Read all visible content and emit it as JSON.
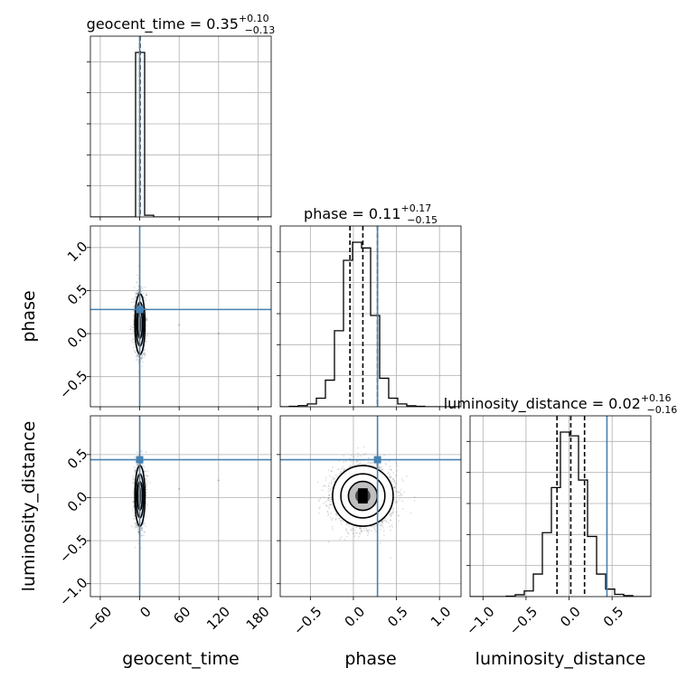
{
  "chart_data": {
    "type": "corner",
    "parameters": [
      "geocent_time",
      "phase",
      "luminosity_distance"
    ],
    "truth_color": "#4682b4",
    "titles": [
      {
        "param": "geocent_time",
        "text": "geocent_time = 0.35",
        "sup": "+0.10",
        "sub": "−0.13"
      },
      {
        "param": "phase",
        "text": "phase = 0.11",
        "sup": "+0.17",
        "sub": "−0.15"
      },
      {
        "param": "luminosity_distance",
        "text": "luminosity_distance = 0.02",
        "sup": "+0.16",
        "sub": "−0.16"
      }
    ],
    "axis_labels": {
      "x": [
        "geocent_time",
        "phase",
        "luminosity_distance"
      ],
      "y": [
        "phase",
        "luminosity_distance"
      ]
    },
    "ranges": {
      "geocent_time": [
        -75,
        200
      ],
      "phase": [
        -0.85,
        1.25
      ],
      "luminosity_distance": [
        -1.15,
        0.95
      ]
    },
    "ticks": {
      "geocent_time": {
        "values": [
          -60,
          0,
          60,
          120,
          180
        ],
        "labels": [
          "−60",
          "0",
          "60",
          "120",
          "180"
        ]
      },
      "phase": {
        "values": [
          -0.5,
          0.0,
          0.5,
          1.0
        ],
        "labels": [
          "−0.5",
          "0.0",
          "0.5",
          "1.0"
        ]
      },
      "luminosity_distance": {
        "values": [
          -1.0,
          -0.5,
          0.0,
          0.5
        ],
        "labels": [
          "−1.0",
          "−0.5",
          "0.0",
          "0.5"
        ]
      }
    },
    "truths": {
      "geocent_time": 0.0,
      "phase": 0.28,
      "luminosity_distance": 0.44
    },
    "quantiles": {
      "geocent_time": [
        0.22,
        0.35,
        0.45
      ],
      "phase": [
        -0.04,
        0.11,
        0.28
      ],
      "luminosity_distance": [
        -0.14,
        0.02,
        0.18
      ]
    },
    "histograms": {
      "geocent_time": {
        "edges": [
          -75,
          -61.25,
          -47.5,
          -33.75,
          -20,
          -6.25,
          7.5,
          21.25,
          35,
          48.75,
          62.5,
          76.25,
          90,
          103.75,
          117.5,
          131.25,
          145,
          158.75,
          172.5,
          186.25,
          200
        ],
        "counts": [
          0,
          0,
          0,
          0,
          0,
          990,
          10,
          0,
          0,
          0,
          0,
          0,
          0,
          0,
          0,
          0,
          0,
          0,
          0,
          0
        ]
      },
      "phase": {
        "edges": [
          -0.85,
          -0.745,
          -0.64,
          -0.535,
          -0.43,
          -0.325,
          -0.22,
          -0.115,
          -0.01,
          0.095,
          0.2,
          0.305,
          0.41,
          0.515,
          0.62,
          0.725,
          0.83,
          0.935,
          1.04,
          1.145,
          1.25
        ],
        "counts": [
          0,
          2,
          6,
          15,
          45,
          140,
          400,
          770,
          865,
          835,
          480,
          150,
          45,
          15,
          5,
          2,
          0,
          0,
          0,
          0
        ]
      },
      "luminosity_distance": {
        "edges": [
          -1.15,
          -1.045,
          -0.94,
          -0.835,
          -0.73,
          -0.625,
          -0.52,
          -0.415,
          -0.31,
          -0.205,
          -0.1,
          0.005,
          0.11,
          0.215,
          0.32,
          0.425,
          0.53,
          0.635,
          0.74,
          0.845,
          0.95
        ],
        "counts": [
          0,
          0,
          0,
          0,
          2,
          10,
          30,
          120,
          340,
          580,
          875,
          855,
          620,
          320,
          120,
          40,
          12,
          5,
          0,
          0
        ]
      }
    },
    "joint": [
      {
        "x": "geocent_time",
        "y": "phase",
        "center": [
          0.35,
          0.11
        ],
        "sigma": [
          3.5,
          0.16
        ],
        "points": 1800,
        "outliers": [
          [
            10,
            0.45
          ],
          [
            -14,
            0.05
          ],
          [
            60,
            0.1
          ],
          [
            120,
            0.0
          ],
          [
            8,
            -0.25
          ]
        ]
      },
      {
        "x": "geocent_time",
        "y": "luminosity_distance",
        "center": [
          0.35,
          0.02
        ],
        "sigma": [
          3.5,
          0.16
        ],
        "points": 1800,
        "outliers": [
          [
            12,
            0.25
          ],
          [
            -10,
            -0.05
          ],
          [
            120,
            0.2
          ],
          [
            7,
            -0.4
          ],
          [
            60,
            0.1
          ]
        ]
      },
      {
        "x": "phase",
        "y": "luminosity_distance",
        "center": [
          0.11,
          0.02
        ],
        "sigma": [
          0.16,
          0.16
        ],
        "points": 3200,
        "outliers": []
      }
    ],
    "grid": true
  }
}
